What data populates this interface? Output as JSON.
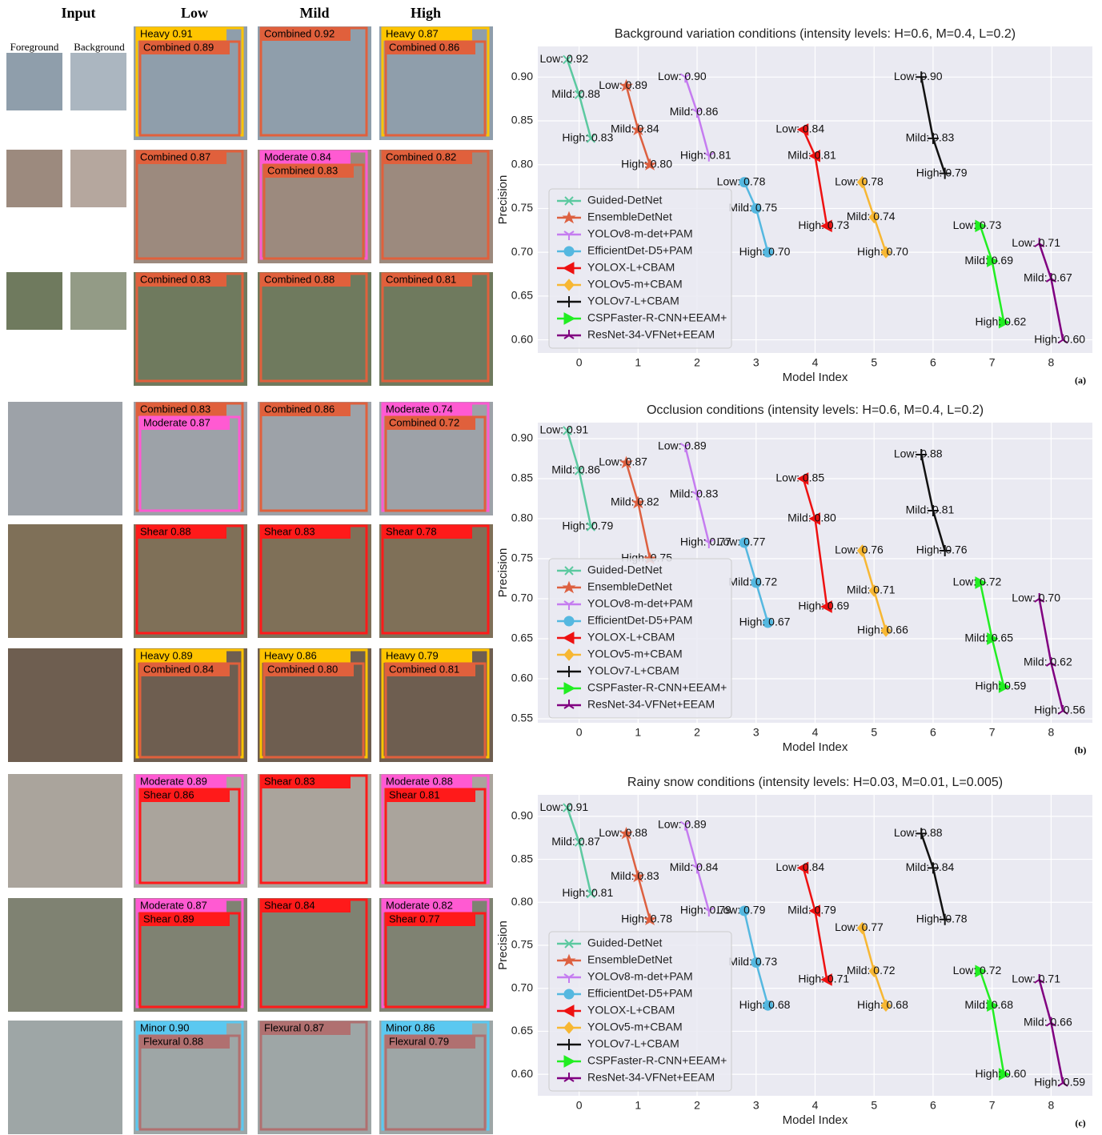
{
  "grid": {
    "headers": [
      "Input",
      "Low",
      "Mild",
      "High"
    ],
    "input_labels": [
      "Foreground",
      "Background"
    ],
    "rows": [
      {
        "tone": "#8f9eab",
        "cells": [
          [
            {
              "text": "Heavy 0.91",
              "color": "#ffc400"
            },
            {
              "text": "Combined 0.89",
              "color": "#e0603c"
            }
          ],
          [
            {
              "text": "Combined 0.92",
              "color": "#e0603c"
            }
          ],
          [
            {
              "text": "Heavy 0.87",
              "color": "#ffc400"
            },
            {
              "text": "Combined 0.86",
              "color": "#e0603c"
            }
          ]
        ]
      },
      {
        "tone": "#9c8a7e",
        "cells": [
          [
            {
              "text": "Combined 0.87",
              "color": "#e0603c"
            }
          ],
          [
            {
              "text": "Moderate 0.84",
              "color": "#ff5ad2"
            },
            {
              "text": "Combined 0.83",
              "color": "#e0603c"
            }
          ],
          [
            {
              "text": "Combined 0.82",
              "color": "#e0603c"
            }
          ]
        ]
      },
      {
        "tone": "#6f7a5e",
        "cells": [
          [
            {
              "text": "Combined 0.83",
              "color": "#e0603c"
            }
          ],
          [
            {
              "text": "Combined 0.88",
              "color": "#e0603c"
            }
          ],
          [
            {
              "text": "Combined 0.81",
              "color": "#e0603c"
            }
          ]
        ]
      },
      {
        "tone": "#9da2a8",
        "cells": [
          [
            {
              "text": "Combined 0.83",
              "color": "#e0603c"
            },
            {
              "text": "Moderate 0.87",
              "color": "#ff5ad2"
            }
          ],
          [
            {
              "text": "Combined 0.86",
              "color": "#e0603c"
            }
          ],
          [
            {
              "text": "Moderate 0.74",
              "color": "#ff5ad2"
            },
            {
              "text": "Combined 0.72",
              "color": "#e0603c"
            }
          ]
        ]
      },
      {
        "tone": "#7f7058",
        "cells": [
          [
            {
              "text": "Shear 0.88",
              "color": "#ff1a1a"
            }
          ],
          [
            {
              "text": "Shear 0.83",
              "color": "#ff1a1a"
            }
          ],
          [
            {
              "text": "Shear 0.78",
              "color": "#ff1a1a"
            }
          ]
        ]
      },
      {
        "tone": "#6e5e50",
        "cells": [
          [
            {
              "text": "Heavy 0.89",
              "color": "#ffc400"
            },
            {
              "text": "Combined 0.84",
              "color": "#e0603c"
            }
          ],
          [
            {
              "text": "Heavy 0.86",
              "color": "#ffc400"
            },
            {
              "text": "Combined 0.80",
              "color": "#e0603c"
            }
          ],
          [
            {
              "text": "Heavy 0.79",
              "color": "#ffc400"
            },
            {
              "text": "Combined 0.81",
              "color": "#e0603c"
            }
          ]
        ]
      },
      {
        "tone": "#aaa49c",
        "cells": [
          [
            {
              "text": "Moderate 0.89",
              "color": "#ff5ad2"
            },
            {
              "text": "Shear 0.86",
              "color": "#ff1a1a"
            }
          ],
          [
            {
              "text": "Shear 0.83",
              "color": "#ff1a1a"
            }
          ],
          [
            {
              "text": "Moderate 0.88",
              "color": "#ff5ad2"
            },
            {
              "text": "Shear 0.81",
              "color": "#ff1a1a"
            }
          ]
        ]
      },
      {
        "tone": "#7f8272",
        "cells": [
          [
            {
              "text": "Moderate 0.87",
              "color": "#ff5ad2"
            },
            {
              "text": "Shear 0.89",
              "color": "#ff1a1a"
            }
          ],
          [
            {
              "text": "Shear 0.84",
              "color": "#ff1a1a"
            }
          ],
          [
            {
              "text": "Moderate 0.82",
              "color": "#ff5ad2"
            },
            {
              "text": "Shear 0.77",
              "color": "#ff1a1a"
            }
          ]
        ]
      },
      {
        "tone": "#9ea6a6",
        "cells": [
          [
            {
              "text": "Minor 0.90",
              "color": "#5bc8f0"
            },
            {
              "text": "Flexural 0.88",
              "color": "#b07070"
            }
          ],
          [
            {
              "text": "Flexural 0.87",
              "color": "#b07070"
            }
          ],
          [
            {
              "text": "Minor 0.86",
              "color": "#5bc8f0"
            },
            {
              "text": "Flexural 0.79",
              "color": "#b07070"
            }
          ]
        ]
      }
    ]
  },
  "chart_data": [
    {
      "type": "line",
      "title": "Background variation conditions (intensity levels: H=0.6, M=0.4, L=0.2)",
      "x_label": "Model Index",
      "y_label": "Precision",
      "panel": "(a)",
      "grid": true,
      "legend": "lower left",
      "xlim": [
        -0.7,
        8.7
      ],
      "xticks": [
        0,
        1,
        2,
        3,
        4,
        5,
        6,
        7,
        8
      ],
      "ylim": [
        0.585,
        0.935
      ],
      "yticks": [
        {
          "value": 0.6,
          "label": "0.60"
        },
        0.65,
        {
          "value": 0.7,
          "label": "0.70"
        },
        0.75,
        {
          "value": 0.8,
          "label": "0.80"
        },
        0.85,
        {
          "value": 0.9,
          "label": "0.90"
        }
      ],
      "series": [
        {
          "name": "Guided-DetNet",
          "color": "#5cc9a0",
          "marker": "x",
          "x": [
            -0.2,
            0,
            0.2
          ],
          "values": [
            0.92,
            0.88,
            0.83
          ],
          "value_labels": [
            "Low: 0.92",
            "Mild: 0.88",
            "High: 0.83"
          ]
        },
        {
          "name": "EnsembleDetNet",
          "color": "#dd6040",
          "marker": "star",
          "x": [
            0.8,
            1,
            1.2
          ],
          "values": [
            0.89,
            0.84,
            0.8
          ],
          "value_labels": [
            "Low: 0.89",
            "Mild: 0.84",
            "High: 0.80"
          ]
        },
        {
          "name": "YOLOv8-m-det+PAM",
          "color": "#c57cf0",
          "marker": "tri_down",
          "x": [
            1.8,
            2,
            2.2
          ],
          "values": [
            0.9,
            0.86,
            0.81
          ],
          "value_labels": [
            "Low: 0.90",
            "Mild: 0.86",
            "High: 0.81"
          ]
        },
        {
          "name": "EfficientDet-D5+PAM",
          "color": "#55b8e0",
          "marker": "circle",
          "x": [
            2.8,
            3,
            3.2
          ],
          "values": [
            0.78,
            0.75,
            0.7
          ],
          "value_labels": [
            "Low: 0.78",
            "Mild: 0.75",
            "High: 0.70"
          ]
        },
        {
          "name": "YOLOX-L+CBAM",
          "color": "#ee1111",
          "marker": "triangle_left",
          "x": [
            3.8,
            4,
            4.2
          ],
          "values": [
            0.84,
            0.81,
            0.73
          ],
          "value_labels": [
            "Low: 0.84",
            "Mild: 0.81",
            "High: 0.73"
          ]
        },
        {
          "name": "YOLOv5-m+CBAM",
          "color": "#f7b733",
          "marker": "diamond",
          "x": [
            4.8,
            5,
            5.2
          ],
          "values": [
            0.78,
            0.74,
            0.7
          ],
          "value_labels": [
            "Low: 0.78",
            "Mild: 0.74",
            "High: 0.70"
          ]
        },
        {
          "name": "YOLOv7-L+CBAM",
          "color": "#111111",
          "marker": "plus",
          "x": [
            5.8,
            6,
            6.2
          ],
          "values": [
            0.9,
            0.83,
            0.79
          ],
          "value_labels": [
            "Low: 0.90",
            "Mild: 0.83",
            "High: 0.79"
          ]
        },
        {
          "name": "CSPFaster-R-CNN+EEAM+",
          "color": "#22ee22",
          "marker": "triangle_right",
          "x": [
            6.8,
            7,
            7.2
          ],
          "values": [
            0.73,
            0.69,
            0.62
          ],
          "value_labels": [
            "Low: 0.73",
            "Mild: 0.69",
            "High: 0.62"
          ]
        },
        {
          "name": "ResNet-34-VFNet+EEAM",
          "color": "#800080",
          "marker": "tri_up",
          "x": [
            7.8,
            8,
            8.2
          ],
          "values": [
            0.71,
            0.67,
            0.6
          ],
          "value_labels": [
            "Low: 0.71",
            "Mild: 0.67",
            "High: 0.60"
          ]
        }
      ]
    },
    {
      "type": "line",
      "title": "Occlusion conditions (intensity levels: H=0.6, M=0.4, L=0.2)",
      "x_label": "Model Index",
      "y_label": "Precision",
      "panel": "(b)",
      "grid": true,
      "legend": "lower left",
      "xlim": [
        -0.7,
        8.7
      ],
      "xticks": [
        0,
        1,
        2,
        3,
        4,
        5,
        6,
        7,
        8
      ],
      "ylim": [
        0.545,
        0.92
      ],
      "yticks": [
        0.55,
        {
          "value": 0.6,
          "label": "0.60"
        },
        0.65,
        {
          "value": 0.7,
          "label": "0.70"
        },
        0.75,
        {
          "value": 0.8,
          "label": "0.80"
        },
        0.85,
        {
          "value": 0.9,
          "label": "0.90"
        }
      ],
      "series": [
        {
          "name": "Guided-DetNet",
          "color": "#5cc9a0",
          "marker": "x",
          "x": [
            -0.2,
            0,
            0.2
          ],
          "values": [
            0.91,
            0.86,
            0.79
          ],
          "value_labels": [
            "Low: 0.91",
            "Mild: 0.86",
            "High: 0.79"
          ]
        },
        {
          "name": "EnsembleDetNet",
          "color": "#dd6040",
          "marker": "star",
          "x": [
            0.8,
            1,
            1.2
          ],
          "values": [
            0.87,
            0.82,
            0.75
          ],
          "value_labels": [
            "Low: 0.87",
            "Mild: 0.82",
            "High: 0.75"
          ]
        },
        {
          "name": "YOLOv8-m-det+PAM",
          "color": "#c57cf0",
          "marker": "tri_down",
          "x": [
            1.8,
            2,
            2.2
          ],
          "values": [
            0.89,
            0.83,
            0.77
          ],
          "value_labels": [
            "Low: 0.89",
            "Mild: 0.83",
            "High: 0.77"
          ]
        },
        {
          "name": "EfficientDet-D5+PAM",
          "color": "#55b8e0",
          "marker": "circle",
          "x": [
            2.8,
            3,
            3.2
          ],
          "values": [
            0.77,
            0.72,
            0.67
          ],
          "value_labels": [
            "Low: 0.77",
            "Mild: 0.72",
            "High: 0.67"
          ]
        },
        {
          "name": "YOLOX-L+CBAM",
          "color": "#ee1111",
          "marker": "triangle_left",
          "x": [
            3.8,
            4,
            4.2
          ],
          "values": [
            0.85,
            0.8,
            0.69
          ],
          "value_labels": [
            "Low: 0.85",
            "Mild: 0.80",
            "High: 0.69"
          ]
        },
        {
          "name": "YOLOv5-m+CBAM",
          "color": "#f7b733",
          "marker": "diamond",
          "x": [
            4.8,
            5,
            5.2
          ],
          "values": [
            0.76,
            0.71,
            0.66
          ],
          "value_labels": [
            "Low: 0.76",
            "Mild: 0.71",
            "High: 0.66"
          ]
        },
        {
          "name": "YOLOv7-L+CBAM",
          "color": "#111111",
          "marker": "plus",
          "x": [
            5.8,
            6,
            6.2
          ],
          "values": [
            0.88,
            0.81,
            0.76
          ],
          "value_labels": [
            "Low: 0.88",
            "Mild: 0.81",
            "High: 0.76"
          ]
        },
        {
          "name": "CSPFaster-R-CNN+EEAM+",
          "color": "#22ee22",
          "marker": "triangle_right",
          "x": [
            6.8,
            7,
            7.2
          ],
          "values": [
            0.72,
            0.65,
            0.59
          ],
          "value_labels": [
            "Low: 0.72",
            "Mild: 0.65",
            "High: 0.59"
          ]
        },
        {
          "name": "ResNet-34-VFNet+EEAM",
          "color": "#800080",
          "marker": "tri_up",
          "x": [
            7.8,
            8,
            8.2
          ],
          "values": [
            0.7,
            0.62,
            0.56
          ],
          "value_labels": [
            "Low: 0.70",
            "Mild: 0.62",
            "High: 0.56"
          ]
        }
      ]
    },
    {
      "type": "line",
      "title": "Rainy snow conditions (intensity levels: H=0.03, M=0.01, L=0.005)",
      "x_label": "Model Index",
      "y_label": "Precision",
      "panel": "(c)",
      "grid": true,
      "legend": "lower left",
      "xlim": [
        -0.7,
        8.7
      ],
      "xticks": [
        0,
        1,
        2,
        3,
        4,
        5,
        6,
        7,
        8
      ],
      "ylim": [
        0.575,
        0.925
      ],
      "yticks": [
        {
          "value": 0.6,
          "label": "0.60"
        },
        0.65,
        {
          "value": 0.7,
          "label": "0.70"
        },
        0.75,
        {
          "value": 0.8,
          "label": "0.80"
        },
        0.85,
        {
          "value": 0.9,
          "label": "0.90"
        }
      ],
      "series": [
        {
          "name": "Guided-DetNet",
          "color": "#5cc9a0",
          "marker": "x",
          "x": [
            -0.2,
            0,
            0.2
          ],
          "values": [
            0.91,
            0.87,
            0.81
          ],
          "value_labels": [
            "Low: 0.91",
            "Mild: 0.87",
            "High: 0.81"
          ]
        },
        {
          "name": "EnsembleDetNet",
          "color": "#dd6040",
          "marker": "star",
          "x": [
            0.8,
            1,
            1.2
          ],
          "values": [
            0.88,
            0.83,
            0.78
          ],
          "value_labels": [
            "Low: 0.88",
            "Mild: 0.83",
            "High: 0.78"
          ]
        },
        {
          "name": "YOLOv8-m-det+PAM",
          "color": "#c57cf0",
          "marker": "tri_down",
          "x": [
            1.8,
            2,
            2.2
          ],
          "values": [
            0.89,
            0.84,
            0.79
          ],
          "value_labels": [
            "Low: 0.89",
            "Mild: 0.84",
            "High: 0.79"
          ]
        },
        {
          "name": "EfficientDet-D5+PAM",
          "color": "#55b8e0",
          "marker": "circle",
          "x": [
            2.8,
            3,
            3.2
          ],
          "values": [
            0.79,
            0.73,
            0.68
          ],
          "value_labels": [
            "Low: 0.79",
            "Mild: 0.73",
            "High: 0.68"
          ]
        },
        {
          "name": "YOLOX-L+CBAM",
          "color": "#ee1111",
          "marker": "triangle_left",
          "x": [
            3.8,
            4,
            4.2
          ],
          "values": [
            0.84,
            0.79,
            0.71
          ],
          "value_labels": [
            "Low: 0.84",
            "Mild: 0.79",
            "High: 0.71"
          ]
        },
        {
          "name": "YOLOv5-m+CBAM",
          "color": "#f7b733",
          "marker": "diamond",
          "x": [
            4.8,
            5,
            5.2
          ],
          "values": [
            0.77,
            0.72,
            0.68
          ],
          "value_labels": [
            "Low: 0.77",
            "Mild: 0.72",
            "High: 0.68"
          ]
        },
        {
          "name": "YOLOv7-L+CBAM",
          "color": "#111111",
          "marker": "plus",
          "x": [
            5.8,
            6,
            6.2
          ],
          "values": [
            0.88,
            0.84,
            0.78
          ],
          "value_labels": [
            "Low: 0.88",
            "Mild: 0.84",
            "High: 0.78"
          ]
        },
        {
          "name": "CSPFaster-R-CNN+EEAM+",
          "color": "#22ee22",
          "marker": "triangle_right",
          "x": [
            6.8,
            7,
            7.2
          ],
          "values": [
            0.72,
            0.68,
            0.6
          ],
          "value_labels": [
            "Low: 0.72",
            "Mild: 0.68",
            "High: 0.60"
          ]
        },
        {
          "name": "ResNet-34-VFNet+EEAM",
          "color": "#800080",
          "marker": "tri_up",
          "x": [
            7.8,
            8,
            8.2
          ],
          "values": [
            0.71,
            0.66,
            0.59
          ],
          "value_labels": [
            "Low: 0.71",
            "Mild: 0.66",
            "High: 0.59"
          ]
        }
      ]
    }
  ]
}
